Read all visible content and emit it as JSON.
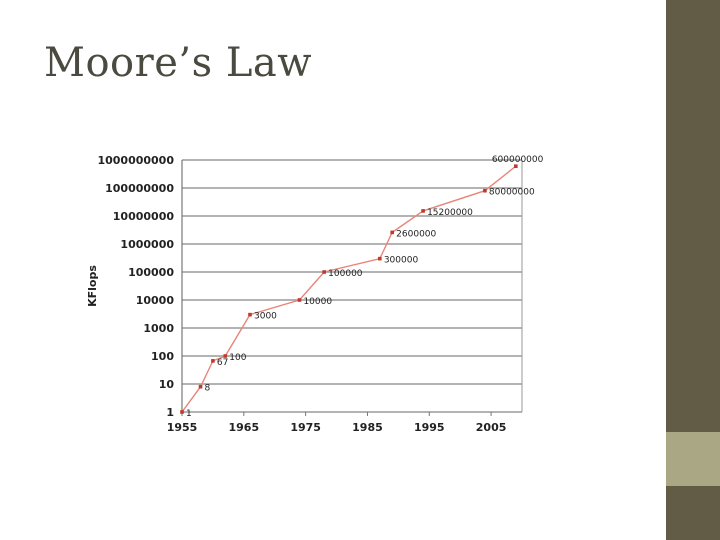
{
  "slide": {
    "title": "Moore’s Law"
  },
  "colors": {
    "sidebar_dark": "#625c47",
    "sidebar_light": "#a9a784",
    "line": "#e8857a",
    "marker": "#c0392b",
    "grid": "#9a9a9a"
  },
  "chart_data": {
    "type": "line",
    "title": "",
    "xlabel": "",
    "ylabel": "KFlops",
    "yscale": "log",
    "ylim": [
      1,
      1000000000
    ],
    "xlim": [
      1955,
      2010
    ],
    "grid": true,
    "legend": "none",
    "x_ticks": [
      "1955",
      "1965",
      "1975",
      "1985",
      "1995",
      "2005"
    ],
    "y_ticks": [
      "1",
      "10",
      "100",
      "1000",
      "10000",
      "100000",
      "1000000",
      "10000000",
      "100000000",
      "1000000000"
    ],
    "series": [
      {
        "points": [
          {
            "x": 1955,
            "y": 1,
            "label": "1"
          },
          {
            "x": 1958,
            "y": 8,
            "label": "8"
          },
          {
            "x": 1960,
            "y": 67,
            "label": "67"
          },
          {
            "x": 1962,
            "y": 100,
            "label": "100"
          },
          {
            "x": 1966,
            "y": 3000,
            "label": "3000"
          },
          {
            "x": 1974,
            "y": 10000,
            "label": "10000"
          },
          {
            "x": 1978,
            "y": 100000,
            "label": "100000"
          },
          {
            "x": 1987,
            "y": 300000,
            "label": "300000"
          },
          {
            "x": 1989,
            "y": 2600000,
            "label": "2600000"
          },
          {
            "x": 1994,
            "y": 15200000,
            "label": "15200000"
          },
          {
            "x": 2004,
            "y": 80000000,
            "label": "80000000"
          },
          {
            "x": 2009,
            "y": 600000000,
            "label": "600000000"
          }
        ]
      }
    ]
  }
}
